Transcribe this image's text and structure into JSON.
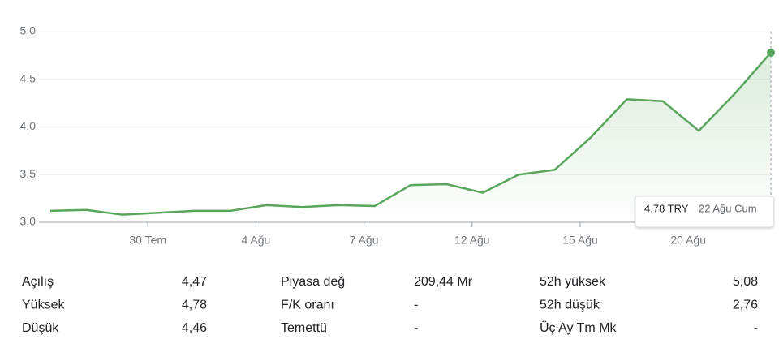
{
  "chart_data": {
    "type": "line",
    "categories": [
      null,
      null,
      null,
      "30 Tem",
      null,
      null,
      "4 Ağu",
      null,
      null,
      "7 Ağu",
      null,
      null,
      "12 Ağu",
      null,
      null,
      "15 Ağu",
      null,
      null,
      "20 Ağu",
      null,
      null
    ],
    "values": [
      3.12,
      3.13,
      3.08,
      3.1,
      3.12,
      3.12,
      3.18,
      3.16,
      3.18,
      3.17,
      3.39,
      3.4,
      3.31,
      3.5,
      3.55,
      3.89,
      4.29,
      4.27,
      3.96,
      4.35,
      4.78
    ],
    "value_labels": [
      null,
      null,
      null,
      null,
      null,
      null,
      null,
      null,
      null,
      null,
      null,
      null,
      null,
      null,
      null,
      null,
      null,
      null,
      null,
      null,
      "4,78 TRY"
    ],
    "tooltip_date": "22 Ağu Cum",
    "color": "#58a65b",
    "ylim": [
      3,
      5
    ],
    "yticks": [
      {
        "value": 3,
        "label": "3,0"
      },
      {
        "value": 3.5,
        "label": "3,5"
      },
      {
        "value": 4,
        "label": "4,0"
      },
      {
        "value": 4.5,
        "label": "4,5"
      },
      {
        "value": 5,
        "label": "5,0"
      }
    ],
    "grid": true
  },
  "stats": [
    [
      [
        "Açılış",
        "4,47"
      ],
      [
        "Piyasa değ",
        "209,44 Mr"
      ],
      [
        "52h yüksek",
        "5,08"
      ]
    ],
    [
      [
        "Yüksek",
        "4,78"
      ],
      [
        "F/K oranı",
        "-"
      ],
      [
        "52h düşük",
        "2,76"
      ]
    ],
    [
      [
        "Düşük",
        "4,46"
      ],
      [
        "Temettü",
        "-"
      ],
      [
        "Üç Ay Tm Mk",
        "-"
      ]
    ]
  ]
}
